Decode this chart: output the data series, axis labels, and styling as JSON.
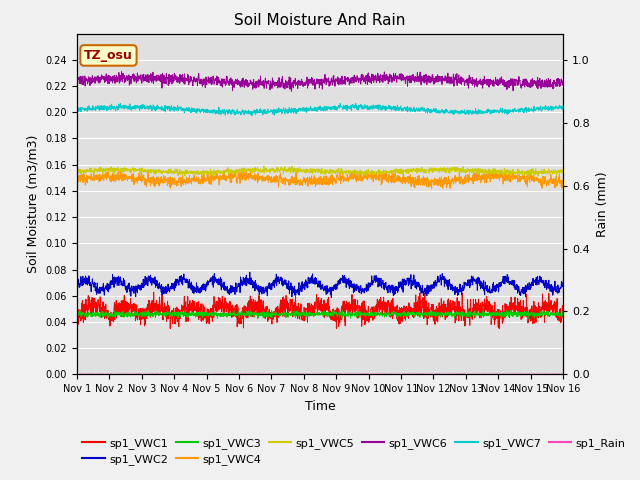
{
  "title": "Soil Moisture And Rain",
  "xlabel": "Time",
  "ylabel_left": "Soil Moisture (m3/m3)",
  "ylabel_right": "Rain (mm)",
  "x_ticks": [
    "Nov 1",
    "Nov 2",
    "Nov 3",
    "Nov 4",
    "Nov 5",
    "Nov 6",
    "Nov 7",
    "Nov 8",
    "Nov 9",
    "Nov 10",
    "Nov 11",
    "Nov 12",
    "Nov 13",
    "Nov 14",
    "Nov 15",
    "Nov 16"
  ],
  "ylim_left": [
    0.0,
    0.26
  ],
  "ylim_right": [
    0.0,
    1.083333
  ],
  "yticks_left": [
    0.0,
    0.02,
    0.04,
    0.06,
    0.08,
    0.1,
    0.12,
    0.14,
    0.16,
    0.18,
    0.2,
    0.22,
    0.24
  ],
  "yticks_right": [
    0.0,
    0.2,
    0.4,
    0.6,
    0.8,
    1.0
  ],
  "bg_color": "#e0e0e0",
  "fig_bg_color": "#f0f0f0",
  "label_box_facecolor": "#ffffcc",
  "label_box_edgecolor": "#cc6600",
  "label_text": "TZ_osu",
  "label_text_color": "#990000",
  "series_colors": {
    "VWC1": "#ff0000",
    "VWC2": "#0000cc",
    "VWC3": "#00cc00",
    "VWC4": "#ff9900",
    "VWC5": "#cccc00",
    "VWC6": "#990099",
    "VWC7": "#00cccc",
    "Rain": "#ff44bb"
  },
  "n_points": 2000
}
